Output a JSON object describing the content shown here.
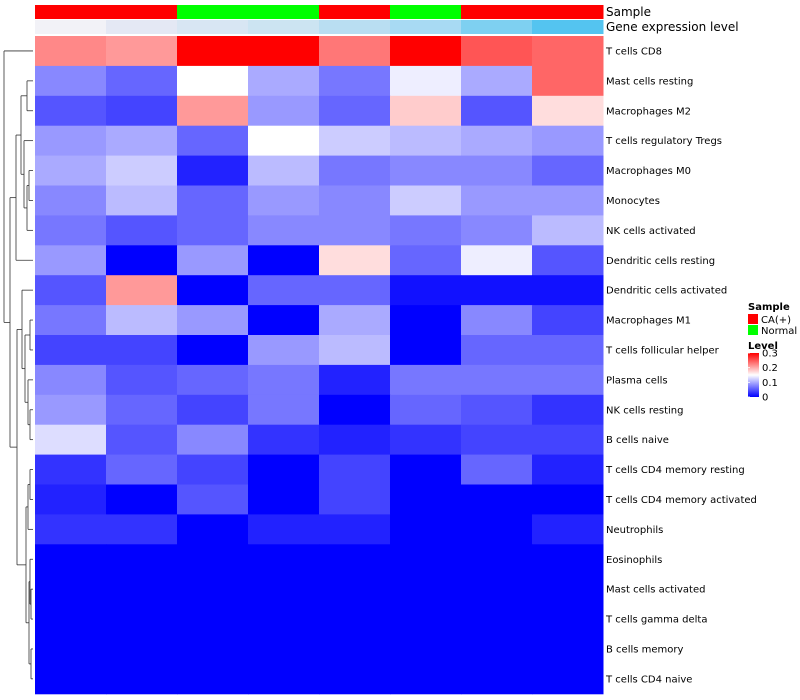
{
  "chart_data": {
    "type": "heatmap",
    "title": "",
    "annotation_rows": [
      {
        "label": "Sample",
        "colors": [
          "#ff0000",
          "#ff0000",
          "#00ff00",
          "#00ff00",
          "#ff0000",
          "#00ff00",
          "#ff0000",
          "#ff0000"
        ]
      },
      {
        "label": "Gene expression level",
        "colors": [
          "#f2f2f7",
          "#e4e8f4",
          "#d8e6f3",
          "#cce4f2",
          "#b9def2",
          "#a8daf3",
          "#7ed0f1",
          "#54c4f0"
        ]
      }
    ],
    "rows": [
      "T cells CD8",
      "Mast cells resting",
      "Macrophages M2",
      "T cells regulatory  Tregs",
      "Macrophages M0",
      "Monocytes",
      "NK cells activated",
      "Dendritic cells resting",
      "Dendritic cells activated",
      "Macrophages M1",
      "T cells follicular helper",
      "Plasma cells",
      "NK cells resting",
      "B cells naive",
      "T cells CD4 memory resting",
      "T cells CD4 memory activated",
      "Neutrophils",
      "Eosinophils",
      "Mast cells activated",
      "T cells gamma delta",
      "B cells memory",
      "T cells CD4 naive"
    ],
    "values": [
      [
        0.22,
        0.21,
        0.3,
        0.3,
        0.23,
        0.3,
        0.25,
        0.24
      ],
      [
        0.08,
        0.06,
        0.15,
        0.1,
        0.07,
        0.14,
        0.1,
        0.24
      ],
      [
        0.05,
        0.04,
        0.21,
        0.09,
        0.06,
        0.18,
        0.05,
        0.17
      ],
      [
        0.09,
        0.1,
        0.06,
        0.15,
        0.12,
        0.11,
        0.1,
        0.09
      ],
      [
        0.1,
        0.12,
        0.02,
        0.11,
        0.07,
        0.08,
        0.08,
        0.06
      ],
      [
        0.08,
        0.11,
        0.06,
        0.09,
        0.08,
        0.12,
        0.09,
        0.09
      ],
      [
        0.07,
        0.05,
        0.06,
        0.08,
        0.08,
        0.07,
        0.08,
        0.11
      ],
      [
        0.09,
        0.0,
        0.09,
        0.0,
        0.17,
        0.06,
        0.14,
        0.05
      ],
      [
        0.05,
        0.21,
        0.0,
        0.06,
        0.06,
        0.01,
        0.01,
        0.01
      ],
      [
        0.07,
        0.11,
        0.09,
        0.0,
        0.1,
        0.0,
        0.08,
        0.04
      ],
      [
        0.04,
        0.04,
        0.0,
        0.09,
        0.11,
        0.0,
        0.06,
        0.06
      ],
      [
        0.08,
        0.05,
        0.06,
        0.07,
        0.02,
        0.07,
        0.07,
        0.07
      ],
      [
        0.09,
        0.06,
        0.04,
        0.07,
        0.0,
        0.06,
        0.05,
        0.03
      ],
      [
        0.13,
        0.05,
        0.08,
        0.03,
        0.02,
        0.03,
        0.04,
        0.04
      ],
      [
        0.03,
        0.06,
        0.04,
        0.0,
        0.04,
        0.0,
        0.06,
        0.02
      ],
      [
        0.02,
        0.0,
        0.05,
        0.0,
        0.04,
        0.0,
        0.0,
        0.0
      ],
      [
        0.03,
        0.03,
        0.0,
        0.02,
        0.02,
        0.0,
        0.0,
        0.02
      ],
      [
        0.0,
        0.0,
        0.0,
        0.0,
        0.0,
        0.0,
        0.0,
        0.0
      ],
      [
        0.0,
        0.0,
        0.0,
        0.0,
        0.0,
        0.0,
        0.0,
        0.0
      ],
      [
        0.0,
        0.0,
        0.0,
        0.0,
        0.0,
        0.0,
        0.0,
        0.0
      ],
      [
        0.0,
        0.0,
        0.0,
        0.0,
        0.0,
        0.0,
        0.0,
        0.0
      ],
      [
        0.0,
        0.0,
        0.0,
        0.0,
        0.0,
        0.0,
        0.0,
        0.0
      ]
    ],
    "color_scale": {
      "low": "#0000ff",
      "mid": "#ffffff",
      "high": "#ff0000",
      "min": 0,
      "mid_value": 0.15,
      "max": 0.3
    },
    "legend": {
      "sample_title": "Sample",
      "sample_entries": [
        {
          "label": "CA(+)",
          "color": "#ff0000"
        },
        {
          "label": "Normal",
          "color": "#00ff00"
        }
      ],
      "level_title": "Level",
      "level_ticks": [
        "0.3",
        "0.2",
        "0.1",
        "0"
      ],
      "level_tick_values": [
        0.3,
        0.2,
        0.1,
        0
      ]
    },
    "dendrogram": "rows",
    "grid": false
  }
}
